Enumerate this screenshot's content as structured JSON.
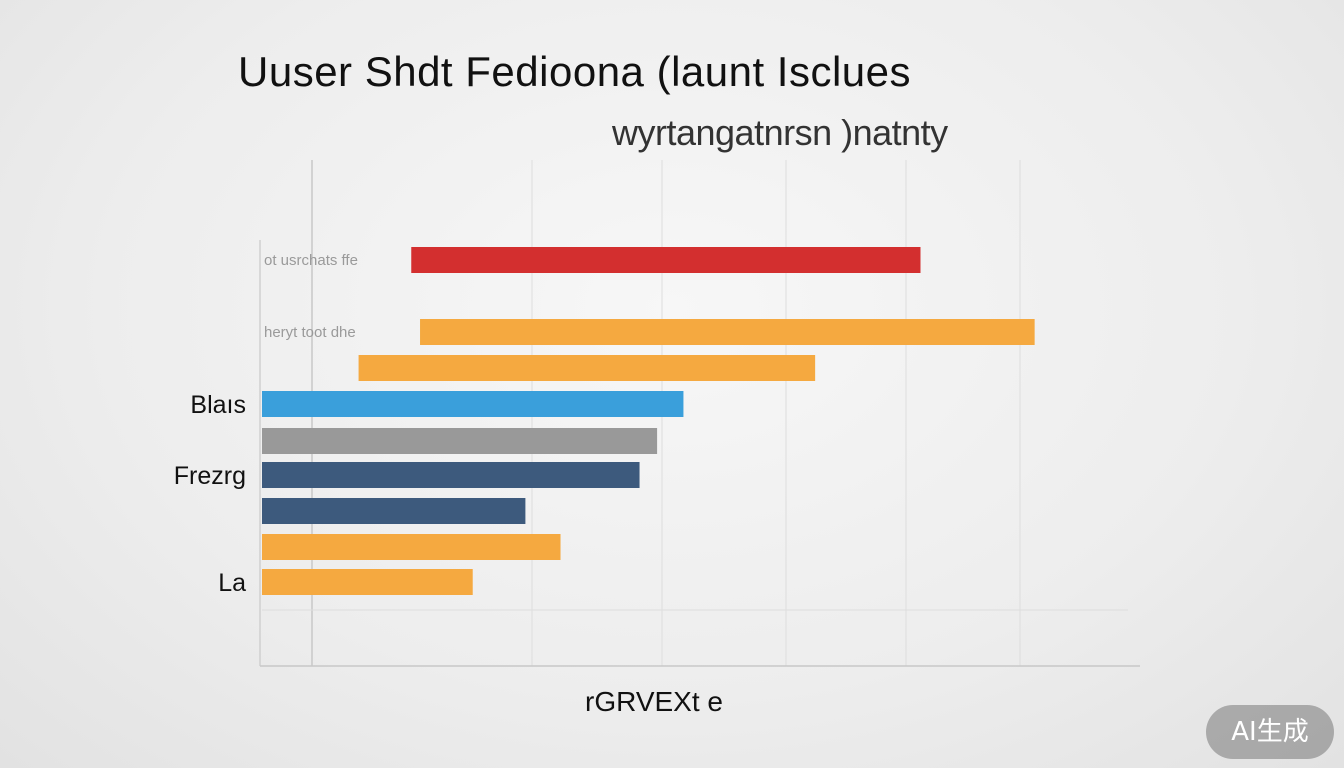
{
  "chart_data": {
    "type": "bar",
    "orientation": "horizontal",
    "title": "Uuser Shdt Fedioona (launt Isclues",
    "subtitle": "wyrtangatnrsn )natnty",
    "xlabel": "rGRVEXt e",
    "ylabel": "",
    "grid": true,
    "legend": "none",
    "xlim": [
      0,
      100
    ],
    "categories": [
      "ot usrchats ffe",
      "heryt toot dhe",
      "",
      "Blaıs",
      "",
      "Frezrg",
      "",
      "",
      "La"
    ],
    "bars": [
      {
        "start": 17,
        "end": 75,
        "color": "#d32f2f"
      },
      {
        "start": 18,
        "end": 88,
        "color": "#f5a940"
      },
      {
        "start": 11,
        "end": 63,
        "color": "#f5a940"
      },
      {
        "start": 0,
        "end": 48,
        "color": "#3a9fdb"
      },
      {
        "start": 0,
        "end": 45,
        "color": "#999999"
      },
      {
        "start": 0,
        "end": 43,
        "color": "#3d5a7d"
      },
      {
        "start": 0,
        "end": 30,
        "color": "#3d5a7d"
      },
      {
        "start": 0,
        "end": 34,
        "color": "#f5a940"
      },
      {
        "start": 0,
        "end": 24,
        "color": "#f5a940"
      }
    ]
  },
  "watermark": "AI生成"
}
